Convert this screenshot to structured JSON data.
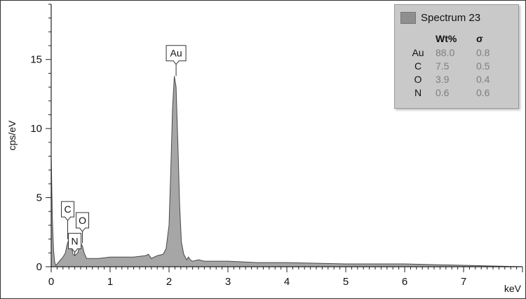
{
  "chart_data": {
    "type": "area",
    "title": "",
    "xlabel": "keV",
    "ylabel": "cps/eV",
    "xlim": [
      0,
      8
    ],
    "ylim": [
      0,
      19
    ],
    "x_ticks": [
      0,
      1,
      2,
      3,
      4,
      5,
      6,
      7
    ],
    "y_ticks": [
      0,
      5,
      10,
      15
    ],
    "grid": false,
    "series": [
      {
        "name": "Spectrum 23",
        "x": [
          0.0,
          0.02,
          0.04,
          0.06,
          0.08,
          0.1,
          0.14,
          0.2,
          0.24,
          0.27,
          0.3,
          0.33,
          0.37,
          0.4,
          0.45,
          0.5,
          0.53,
          0.56,
          0.6,
          0.7,
          0.8,
          1.0,
          1.2,
          1.4,
          1.6,
          1.65,
          1.7,
          1.8,
          1.9,
          1.95,
          2.0,
          2.03,
          2.06,
          2.09,
          2.12,
          2.15,
          2.18,
          2.21,
          2.25,
          2.3,
          2.33,
          2.36,
          2.4,
          2.5,
          2.6,
          3.0,
          3.5,
          4.0,
          5.0,
          6.0,
          7.0,
          8.0
        ],
        "y": [
          8.0,
          3.5,
          1.2,
          0.3,
          0.1,
          0.2,
          0.4,
          0.7,
          1.0,
          1.6,
          2.0,
          1.8,
          0.9,
          0.8,
          1.0,
          1.7,
          1.5,
          1.0,
          0.6,
          0.6,
          0.6,
          0.7,
          0.7,
          0.7,
          0.8,
          0.9,
          0.6,
          0.8,
          0.9,
          1.3,
          3.0,
          7.0,
          11.5,
          13.8,
          13.0,
          9.0,
          4.5,
          1.8,
          0.9,
          0.5,
          0.7,
          0.5,
          0.4,
          0.5,
          0.4,
          0.4,
          0.3,
          0.3,
          0.2,
          0.2,
          0.1,
          0.0
        ]
      }
    ],
    "annotations": [
      {
        "label": "C",
        "x": 0.28,
        "peak_y": 2.0,
        "box_y": 3.6
      },
      {
        "label": "N",
        "x": 0.4,
        "peak_y": 0.8,
        "box_y": 1.3
      },
      {
        "label": "O",
        "x": 0.53,
        "peak_y": 1.7,
        "box_y": 2.8
      },
      {
        "label": "Au",
        "x": 2.12,
        "peak_y": 13.8,
        "box_y": 14.9
      }
    ],
    "legend": {
      "placement": "top-right",
      "title": "Spectrum 23",
      "columns": [
        "",
        "Wt%",
        "σ"
      ],
      "rows": [
        {
          "element": "Au",
          "wt": "88.0",
          "sigma": "0.8"
        },
        {
          "element": "C",
          "wt": "7.5",
          "sigma": "0.5"
        },
        {
          "element": "O",
          "wt": "3.9",
          "sigma": "0.4"
        },
        {
          "element": "N",
          "wt": "0.6",
          "sigma": "0.6"
        }
      ]
    },
    "colors": {
      "fill": "#a6a6a6",
      "stroke": "#4a4a4a"
    }
  }
}
